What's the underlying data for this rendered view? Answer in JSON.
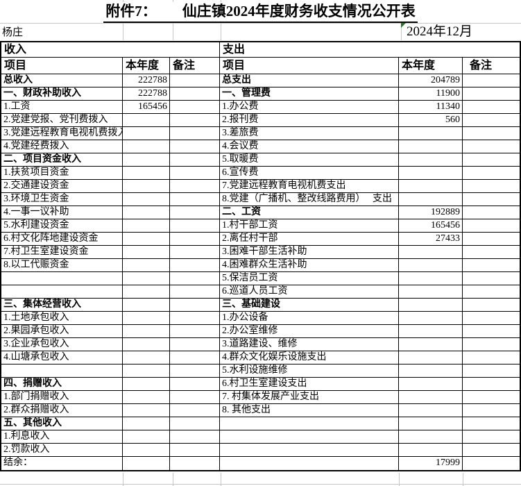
{
  "header": {
    "attachment_label": "附件7：",
    "title": "仙庄镇2024年度财务收支情况公开表",
    "village": "杨庄",
    "period": "2024年12月"
  },
  "icons": {
    "period_flag": "green-triangle-number-as-text-indicator"
  },
  "colors": {
    "border": "#000000",
    "faint_gridline": "#c6c6c6",
    "flag_green": "#1c7a1c",
    "background": "#ffffff"
  },
  "income": {
    "section_label": "收入",
    "columns": [
      "项目",
      "本年度",
      "备注"
    ],
    "rows": [
      {
        "label": "总收入",
        "value": "222788",
        "bold": true
      },
      {
        "label": "一、财政补助收入",
        "value": "222788",
        "bold": true
      },
      {
        "label": "1.工资",
        "value": "165456"
      },
      {
        "label": "2.党建党报、党刊费拨入"
      },
      {
        "label": "3.党建远程教育电视机费拨入"
      },
      {
        "label": "4.党建经费拨入"
      },
      {
        "label": "二、项目资金收入",
        "bold": true
      },
      {
        "label": "1.扶贫项目资金"
      },
      {
        "label": "2.交通建设资金"
      },
      {
        "label": "3.环境卫生资金"
      },
      {
        "label": "4.一事一议补助"
      },
      {
        "label": "5.水利建设资金"
      },
      {
        "label": "6.村文化阵地建设资金"
      },
      {
        "label": "7.村卫生室建设资金"
      },
      {
        "label": "8.以工代赈资金"
      },
      {
        "label": ""
      },
      {
        "label": ""
      },
      {
        "label": "三、集体经营收入",
        "bold": true
      },
      {
        "label": "1.土地承包收入"
      },
      {
        "label": "2.果园承包收入"
      },
      {
        "label": "3.企业承包收入"
      },
      {
        "label": "4.山塘承包收入"
      },
      {
        "label": ""
      },
      {
        "label": "四、捐赠收入",
        "bold": true
      },
      {
        "label": "1.部门捐赠收入"
      },
      {
        "label": "2.群众捐赠收入"
      },
      {
        "label": "五、其他收入",
        "bold": true
      },
      {
        "label": "1.利息收入"
      },
      {
        "label": "2.罚款收入"
      },
      {
        "label": "结余："
      }
    ]
  },
  "expense": {
    "section_label": "支出",
    "columns": [
      "项目",
      "本年度",
      "备注"
    ],
    "rows": [
      {
        "label": "总支出",
        "value": "204789",
        "bold": true
      },
      {
        "label": "一、管理费",
        "value": "11900",
        "bold": true
      },
      {
        "label": "1.办公费",
        "value": "11340"
      },
      {
        "label": "2.报刊费",
        "value": "560"
      },
      {
        "label": "3.差旅费"
      },
      {
        "label": "4.会议费"
      },
      {
        "label": "5.取暖费"
      },
      {
        "label": "6.宣传费"
      },
      {
        "label": "7.党建远程教育电视机费支出"
      },
      {
        "label": "8.党建（广播机、整改线路费用）　 支出"
      },
      {
        "label": "二、工资",
        "value": "192889",
        "bold": true
      },
      {
        "label": "1.村干部工资",
        "value": "165456"
      },
      {
        "label": "2.离任村干部",
        "value": "27433"
      },
      {
        "label": "3.困难干部生活补助"
      },
      {
        "label": "4.困难群众生活补助"
      },
      {
        "label": "5.保洁员工资"
      },
      {
        "label": "6.巡道人员工资"
      },
      {
        "label": "三、基础建设",
        "bold": true
      },
      {
        "label": "1.办公设备"
      },
      {
        "label": "2.办公室维修"
      },
      {
        "label": "3.道路建设、维修"
      },
      {
        "label": "4.群众文化娱乐设施支出"
      },
      {
        "label": "5.水利设施维修"
      },
      {
        "label": "6.村卫生室建设支出"
      },
      {
        "label": "7. 村集体发展产业支出"
      },
      {
        "label": "8. 其他支出"
      },
      {
        "label": ""
      },
      {
        "label": ""
      },
      {
        "label": ""
      },
      {
        "label": "",
        "value": "17999"
      }
    ]
  }
}
